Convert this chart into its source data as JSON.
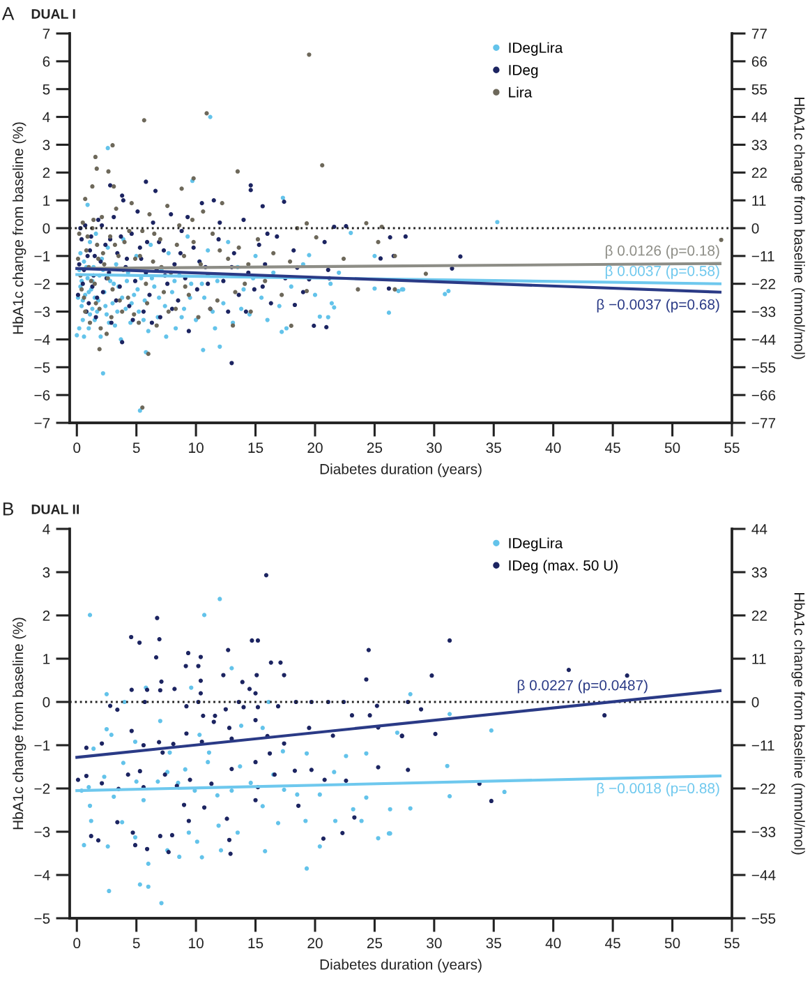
{
  "chart_data": [
    {
      "type": "scatter",
      "title": "DUAL I",
      "xlabel": "Diabetes duration (years)",
      "ylabel": "HbA1c change from baseline (%)",
      "y2label": "HbA1c change from baseline (mmol/mol)",
      "annotations": [
        "A"
      ],
      "xlim": [
        -0.6,
        55
      ],
      "xticks": [
        0,
        5,
        10,
        15,
        20,
        25,
        30,
        35,
        40,
        45,
        50,
        55
      ],
      "ylim": [
        -7,
        7
      ],
      "yticks": [
        -7,
        -6,
        -5,
        -4,
        -3,
        -2,
        -1,
        0,
        1,
        2,
        3,
        4,
        5,
        6,
        7
      ],
      "y2lim": [
        -77,
        77
      ],
      "y2ticks": [
        -77,
        -66,
        -55,
        -44,
        -33,
        -22,
        -11,
        0,
        11,
        22,
        33,
        44,
        55,
        66,
        77
      ],
      "legend": "top right",
      "ref_lines": [
        {
          "axis": "y",
          "value": 0,
          "color": "#222222",
          "line_style": "dotted"
        }
      ],
      "series": [
        {
          "name": "IDegLira",
          "color": "#63c3ea",
          "marker": "circle",
          "x": [
            2.2,
            5.3,
            5.8,
            10.6,
            12.0,
            0,
            17.2,
            17.6,
            11.2,
            2.6,
            9.7,
            17.3,
            0.9,
            35.3,
            27.0,
            27.3,
            30.9,
            31.2,
            25.0,
            25.0,
            26.2,
            27.4,
            23.0,
            21.3,
            21.4,
            21.6,
            21.1,
            20.4,
            19.5,
            0.2,
            0.3,
            0.4,
            0.5,
            0.3,
            0.6,
            0.7,
            0.8,
            0.9,
            1.0,
            1.1,
            1.2,
            1.3,
            1.4,
            1.5,
            1.6,
            1.8,
            1.9,
            2.0,
            2.1,
            2.3,
            2.5,
            2.6,
            2.8,
            3.0,
            3.2,
            3.3,
            3.5,
            3.7,
            3.9,
            4.1,
            4.3,
            4.5,
            4.8,
            5.0,
            5.2,
            5.4,
            5.7,
            6.0,
            6.2,
            6.5,
            6.8,
            7.1,
            7.4,
            7.7,
            8.0,
            8.3,
            8.6,
            9.0,
            9.3,
            9.6,
            10.0,
            10.3,
            10.7,
            11.0,
            11.4,
            11.8,
            12.3,
            12.7,
            13.1,
            13.5,
            14.0,
            14.5,
            15.0,
            15.5,
            16.0,
            16.5,
            17.0,
            18.0,
            19.0,
            20.0,
            22.0,
            0.1,
            0.2,
            0.4,
            0.5,
            0.6,
            0.8,
            1.0,
            1.1,
            1.3,
            1.5,
            1.7,
            2.2,
            2.4,
            2.7,
            3.1,
            3.4,
            3.8,
            4.2,
            4.6,
            5.1,
            5.6,
            6.3,
            6.9,
            7.5,
            8.2,
            8.8,
            9.5,
            10.5,
            11.6,
            13.8,
            14.8
          ],
          "values": [
            -5.22,
            -6.56,
            -4.46,
            -4.38,
            -4.26,
            -3.85,
            -3.73,
            -3.6,
            4.0,
            2.88,
            1.7,
            1.09,
            0.84,
            0.22,
            -2.26,
            -2.2,
            -2.37,
            -2.26,
            -1.0,
            -2.17,
            -3.04,
            -2.2,
            -0.17,
            -2.0,
            -2.7,
            -2.85,
            -3.2,
            -3.18,
            -0.97,
            -1.5,
            -2.1,
            -2.8,
            -3.3,
            -0.9,
            -1.2,
            -2.4,
            -3.0,
            -1.8,
            -3.6,
            -0.5,
            -2.2,
            -2.9,
            -1.4,
            -3.3,
            -0.2,
            -2.6,
            -1.7,
            -3.9,
            -1.1,
            -2.3,
            -3.1,
            -0.7,
            -1.9,
            -2.7,
            -3.5,
            -1.3,
            -2.1,
            -4.0,
            -0.4,
            -2.9,
            -1.6,
            -3.4,
            -2.4,
            -1.0,
            -3.0,
            -1.8,
            -2.6,
            -3.7,
            -0.6,
            -2.1,
            -3.2,
            -1.5,
            -2.8,
            -0.9,
            -2.3,
            -3.6,
            -1.7,
            -2.9,
            -0.3,
            -2.0,
            -3.3,
            -1.2,
            -2.5,
            -0.8,
            -3.0,
            -1.9,
            -2.7,
            -0.5,
            -3.4,
            -1.4,
            -2.2,
            -3.1,
            -1.0,
            -2.5,
            -3.3,
            -1.6,
            -2.8,
            -2.1,
            -1.3,
            -2.4,
            -1.6,
            -2.5,
            -3.6,
            -1.9,
            -2.6,
            -3.9,
            -1.4,
            -2.3,
            -3.1,
            -1.9,
            -2.5,
            -3.0,
            -1.5,
            -2.8,
            -3.4,
            -2.0,
            -3.0,
            -2.5,
            -1.9,
            -2.7,
            -2.2,
            -3.3,
            -1.8,
            -2.5,
            -3.9,
            -1.9,
            -3.2,
            -2.5,
            -2.0,
            -3.6,
            -2.9,
            -1.8
          ]
        },
        {
          "name": "IDeg",
          "color": "#1c2461",
          "marker": "circle",
          "x": [
            2.8,
            5.8,
            14.6,
            14.6,
            6.6,
            3.8,
            15.6,
            17.4,
            13.0,
            3.8,
            19.9,
            21.6,
            22.6,
            27.6,
            25.5,
            26.2,
            20.8,
            21.2,
            21.1,
            20.95,
            18.5,
            18.3,
            19.5,
            26.3,
            26.6,
            32.2,
            31.5,
            0.2,
            0.4,
            0.5,
            0.7,
            0.9,
            1.0,
            1.2,
            1.4,
            1.6,
            1.8,
            2.0,
            2.2,
            2.4,
            2.7,
            2.9,
            3.1,
            3.4,
            3.6,
            3.9,
            4.1,
            4.4,
            4.6,
            4.9,
            5.1,
            5.4,
            5.6,
            5.9,
            6.1,
            6.4,
            6.7,
            7.0,
            7.3,
            7.6,
            7.9,
            8.2,
            8.5,
            8.8,
            9.1,
            9.4,
            9.8,
            10.1,
            10.5,
            10.8,
            11.2,
            11.5,
            11.9,
            12.3,
            12.7,
            13.2,
            13.6,
            14.0,
            14.4,
            14.9,
            15.3,
            15.8,
            16.3,
            16.8,
            17.5,
            18.2,
            19.0,
            0.1,
            0.3,
            0.6,
            0.8,
            1.1,
            1.3,
            1.5,
            1.7,
            2.1,
            2.5,
            2.8,
            3.3,
            3.7,
            4.2,
            4.7,
            5.3,
            5.8,
            6.3,
            6.9,
            7.4,
            8.0,
            8.7,
            9.3,
            10.3,
            11.0,
            12.0,
            13.0,
            14.2,
            15.6,
            16.0
          ],
          "values": [
            1.54,
            1.67,
            1.54,
            1.37,
            1.34,
            1.17,
            0.79,
            0.95,
            -4.85,
            -4.1,
            -3.51,
            0.05,
            0.07,
            -0.3,
            -1.09,
            -2.17,
            -0.5,
            -1.8,
            -1.5,
            -3.56,
            -1.42,
            -2.76,
            -1.84,
            -0.33,
            -1.0,
            -1.02,
            -1.45,
            -1.3,
            -0.4,
            -2.0,
            0.1,
            -1.0,
            -2.7,
            -0.3,
            -1.7,
            -3.2,
            0.3,
            -1.2,
            -2.3,
            -0.6,
            -1.6,
            -3.4,
            0.4,
            -0.9,
            -2.1,
            1.0,
            -1.4,
            -2.8,
            -0.2,
            -1.9,
            0.6,
            -1.1,
            -3.0,
            -0.5,
            -2.4,
            0.2,
            -1.5,
            -3.2,
            -0.8,
            -2.0,
            0.5,
            -1.3,
            -2.6,
            -0.1,
            -1.8,
            -3.7,
            -0.7,
            -2.2,
            0.9,
            -1.4,
            -2.9,
            1.0,
            -0.4,
            -1.9,
            -3.0,
            -0.9,
            -2.4,
            0.3,
            -1.6,
            -2.2,
            -0.6,
            -1.3,
            -2.7,
            -0.3,
            -1.8,
            -0.8,
            -2.3,
            -2.4,
            0.0,
            -1.5,
            -3.0,
            -0.8,
            -2.1,
            -1.0,
            -2.5,
            0.1,
            -1.8,
            -0.4,
            -2.6,
            -0.3,
            -1.1,
            -3.3,
            -0.7,
            -1.6,
            -3.4,
            -0.5,
            -1.7,
            -2.9,
            -0.9,
            0.4,
            -1.2,
            -2.0,
            0.2,
            -1.4,
            -3.0,
            -2.1,
            -0.2
          ]
        },
        {
          "name": "Lira",
          "color": "#6d685a",
          "marker": "circle",
          "x": [
            19.5,
            5.65,
            10.9,
            1.56,
            1.67,
            3.0,
            2.65,
            3.1,
            1.3,
            13.5,
            20.6,
            9.8,
            8.8,
            0.7,
            5.5,
            1.9,
            6.0,
            18.0,
            24.3,
            25.6,
            25.3,
            26.7,
            26.7,
            23.6,
            22.4,
            20.1,
            19.3,
            18.5,
            19.3,
            29.3,
            54.1,
            0.2,
            0.3,
            0.5,
            0.6,
            0.8,
            1.0,
            1.1,
            1.3,
            1.5,
            1.7,
            1.9,
            2.1,
            2.3,
            2.5,
            2.8,
            3.0,
            3.3,
            3.5,
            3.8,
            4.0,
            4.3,
            4.6,
            4.9,
            5.2,
            5.5,
            5.8,
            6.1,
            6.4,
            6.7,
            7.0,
            7.3,
            7.6,
            7.9,
            8.3,
            8.6,
            9.0,
            9.4,
            9.8,
            10.2,
            10.6,
            11.0,
            11.4,
            11.8,
            12.2,
            12.7,
            13.1,
            13.6,
            14.1,
            14.6,
            15.2,
            15.8,
            16.5,
            17.2,
            17.9,
            0.1,
            0.4,
            0.7,
            0.9,
            1.2,
            1.4,
            1.6,
            1.8,
            2.0,
            2.2,
            2.6,
            2.9,
            3.2,
            3.6,
            3.9,
            4.4,
            4.8,
            5.3,
            5.9,
            6.5,
            7.1,
            7.7,
            8.4,
            9.1,
            9.7,
            10.4,
            11.2,
            12.0,
            13.3,
            14.4
          ],
          "values": [
            6.24,
            3.88,
            4.13,
            2.56,
            2.14,
            2.98,
            2.04,
            1.5,
            1.5,
            2.04,
            2.26,
            1.79,
            1.42,
            1.05,
            -6.45,
            -4.35,
            -4.52,
            -3.51,
            0.18,
            0.05,
            -0.5,
            -1.0,
            -2.2,
            -2.2,
            -1.1,
            -0.33,
            0.17,
            0.0,
            -2.26,
            -1.64,
            -0.42,
            -0.2,
            -1.7,
            0.2,
            -2.5,
            -0.8,
            -1.4,
            -3.4,
            0.0,
            -2.0,
            -0.6,
            -2.9,
            0.4,
            -1.3,
            -3.8,
            -0.3,
            -2.2,
            0.7,
            -1.0,
            -3.0,
            -0.5,
            -2.5,
            0.9,
            -1.1,
            -3.4,
            -0.1,
            -2.0,
            0.5,
            -1.2,
            -3.5,
            -0.4,
            -2.3,
            0.8,
            -1.6,
            -2.9,
            0.1,
            -1.0,
            -2.4,
            -0.5,
            -3.2,
            0.6,
            -1.7,
            -0.2,
            -2.6,
            0.9,
            -1.1,
            -3.5,
            -0.7,
            -2.0,
            -3.0,
            -0.4,
            -1.9,
            -0.9,
            -2.4,
            -1.2,
            -1.1,
            -2.2,
            -3.0,
            -0.3,
            -1.9,
            0.3,
            -2.7,
            -1.1,
            -3.6,
            -0.9,
            -1.8,
            -3.2,
            -0.6,
            -2.6,
            -1.5,
            -0.1,
            -3.1,
            -1.0,
            -2.7,
            -0.2,
            -1.4,
            -3.0,
            -0.6,
            -2.1,
            0.3,
            -1.3,
            -2.9,
            -0.8,
            -2.3,
            -1.3
          ]
        },
        {
          "type": "line",
          "name": "β 0.0126 (p=0.18)",
          "color": "#8d8d86",
          "x": [
            0,
            54
          ],
          "values": [
            -1.45,
            -1.27
          ]
        },
        {
          "type": "line",
          "name": "β 0.0037 (p=0.58)",
          "color": "#6ec8ee",
          "x": [
            0,
            54
          ],
          "values": [
            -1.67,
            -2.0
          ]
        },
        {
          "type": "line",
          "name": "β −0.0037 (p=0.68)",
          "color": "#2a3a86",
          "x": [
            0,
            54
          ],
          "values": [
            -1.45,
            -2.3
          ]
        }
      ]
    },
    {
      "type": "scatter",
      "title": "DUAL II",
      "xlabel": "Diabetes duration (years)",
      "ylabel": "HbA1c change from baseline (%)",
      "y2label": "HbA1c change from baseline (mmol/mol)",
      "annotations": [
        "B"
      ],
      "xlim": [
        -0.6,
        55
      ],
      "xticks": [
        0,
        5,
        10,
        15,
        20,
        25,
        30,
        35,
        40,
        45,
        50,
        55
      ],
      "ylim": [
        -5,
        4
      ],
      "yticks": [
        -5,
        -4,
        -3,
        -2,
        -1,
        0,
        1,
        2,
        3,
        4
      ],
      "y2lim": [
        -55,
        44
      ],
      "y2ticks": [
        -55,
        -44,
        -33,
        -22,
        -11,
        0,
        11,
        22,
        33,
        44
      ],
      "legend": "top right",
      "ref_lines": [
        {
          "axis": "y",
          "value": 0,
          "color": "#222222",
          "line_style": "dotted"
        }
      ],
      "series": [
        {
          "name": "IDegLira",
          "color": "#63c3ea",
          "marker": "circle",
          "x": [
            1.1,
            10.7,
            12.0,
            13.0,
            9.6,
            5.8,
            2.5,
            4.0,
            16.1,
            28.0,
            2.5,
            0.4,
            1.1,
            1.0,
            2.3,
            3.1,
            3.9,
            5.0,
            5.6,
            6.8,
            7.6,
            8.5,
            9.1,
            9.9,
            11.0,
            11.8,
            13.0,
            13.7,
            14.6,
            15.6,
            16.5,
            17.4,
            18.5,
            20.4,
            21.6,
            23.2,
            24.3,
            26.3,
            28.0,
            0.6,
            1.2,
            2.6,
            2.7,
            3.8,
            4.9,
            5.3,
            6.0,
            6.0,
            7.1,
            7.6,
            8.6,
            9.4,
            10.1,
            10.5,
            11.9,
            12.1,
            13.5,
            15.8,
            16.9,
            19.3,
            19.2,
            20.4,
            21.7,
            23.9,
            25.3,
            26.2,
            1.4,
            2.9,
            4.9,
            7.0,
            7.8,
            10.3,
            11.1,
            13.8,
            15.6,
            17.3,
            19.3,
            22.6,
            24.3,
            26.9,
            31.3,
            34.8,
            31.1,
            31.3,
            35.9,
            26.3
          ],
          "values": [
            2.01,
            2.01,
            2.38,
            0.78,
            0.33,
            0.33,
            0.18,
            0.0,
            0.0,
            0.18,
            -0.63,
            -2.05,
            -2.4,
            -1.97,
            -1.73,
            -2.19,
            -1.41,
            -1.84,
            -2.27,
            -1.84,
            -1.62,
            -1.87,
            -1.56,
            -2.05,
            -1.39,
            -2.16,
            -2.05,
            -1.49,
            -1.87,
            -2.41,
            -1.68,
            -2.03,
            -2.14,
            -2.14,
            -1.62,
            -2.48,
            -2.21,
            -2.48,
            -2.46,
            -3.31,
            -2.75,
            -3.34,
            -4.37,
            -2.78,
            -3.13,
            -4.22,
            -4.27,
            -3.74,
            -4.65,
            -3.43,
            -3.58,
            -3.02,
            -3.23,
            -3.59,
            -2.86,
            -3.43,
            -3.02,
            -3.45,
            -2.8,
            -3.85,
            -2.75,
            -3.34,
            -2.75,
            -2.75,
            -3.15,
            -3.04,
            -1.08,
            -0.76,
            -0.92,
            -0.44,
            -1.17,
            -0.76,
            -1.17,
            -0.55,
            -0.6,
            -1.14,
            -1.19,
            -1.25,
            -1.19,
            -0.71,
            -0.28,
            -0.66,
            -1.48,
            -2.18,
            -2.08,
            -3.04
          ]
        },
        {
          "name": "IDeg (max. 50 U)",
          "color": "#1c2461",
          "marker": "circle",
          "x": [
            15.9,
            6.74,
            4.56,
            5.26,
            6.93,
            6.66,
            9.35,
            10.4,
            10.2,
            9.15,
            12.7,
            14.7,
            15.2,
            16.3,
            17.1,
            17.4,
            15.1,
            12.3,
            24.5,
            24.3,
            4.6,
            5.9,
            7.1,
            7.0,
            8.2,
            10.4,
            10.4,
            13.9,
            14.5,
            15.0,
            2.8,
            3.4,
            5.7,
            9.2,
            10.2,
            10.6,
            11.6,
            12.5,
            13.6,
            14.0,
            15.2,
            16.9,
            18.4,
            19.7,
            21.1,
            22.4,
            23.1,
            24.6,
            25.2,
            27.8,
            0.8,
            2.1,
            4.6,
            5.6,
            6.9,
            7.2,
            8.1,
            9.2,
            10.5,
            11.5,
            12.8,
            13.0,
            15.0,
            16.0,
            16.2,
            17.4,
            19.5,
            21.5,
            25.3,
            27.3,
            0.1,
            0.8,
            2.1,
            3.5,
            4.3,
            5.3,
            5.6,
            7.4,
            8.4,
            9.5,
            11.3,
            13.0,
            15.0,
            16.6,
            18.3,
            19.7,
            20.8,
            22.6,
            25.3,
            27.8,
            3.4,
            4.7,
            4.9,
            5.9,
            7.0,
            8.0,
            9.0,
            9.4,
            10.7,
            12.6,
            12.8,
            12.9,
            15.0,
            15.2,
            18.6,
            20.7,
            22.3,
            23.3,
            1.2,
            1.8,
            7.7,
            31.3,
            41.3,
            29.8,
            46.2,
            28.9,
            27.3,
            30.1,
            33.8,
            34.8,
            44.3
          ],
          "values": [
            2.93,
            1.94,
            1.5,
            1.37,
            1.45,
            1.03,
            1.13,
            1.04,
            0.83,
            0.83,
            1.2,
            1.42,
            1.42,
            0.91,
            0.91,
            0.62,
            0.62,
            0.62,
            1.2,
            0.52,
            0.28,
            0.28,
            0.47,
            0.27,
            0.3,
            0.49,
            0.2,
            0.46,
            0.3,
            0.2,
            -0.09,
            -0.18,
            0.0,
            -0.1,
            0.0,
            -0.32,
            -0.32,
            -0.17,
            0.0,
            -0.12,
            -0.12,
            -0.1,
            0.0,
            0.0,
            0.0,
            0.0,
            -0.31,
            -0.31,
            -0.09,
            0.0,
            -1.06,
            -0.96,
            -0.67,
            -1.0,
            -0.93,
            -1.17,
            -0.97,
            -0.73,
            -0.92,
            -0.46,
            -0.6,
            -0.85,
            -0.42,
            -0.79,
            -1.19,
            -0.96,
            -0.6,
            -0.78,
            -0.59,
            -0.78,
            -1.8,
            -1.71,
            -1.88,
            -2.01,
            -1.68,
            -1.6,
            -1.97,
            -1.68,
            -1.94,
            -1.8,
            -1.89,
            -1.55,
            -1.39,
            -1.68,
            -1.59,
            -1.57,
            -1.8,
            -1.82,
            -1.51,
            -1.57,
            -2.78,
            -3.02,
            -3.31,
            -3.4,
            -3.1,
            -3.08,
            -2.38,
            -2.75,
            -2.44,
            -2.7,
            -3.19,
            -3.51,
            -2.27,
            -1.97,
            -2.4,
            -3.16,
            -3.03,
            -2.67,
            -3.1,
            -3.2,
            -3.47,
            1.42,
            0.74,
            0.61,
            0.61,
            -0.17,
            -0.79,
            -0.74,
            -1.89,
            -2.29,
            -0.31
          ]
        },
        {
          "type": "line",
          "name": "β 0.0227 (p=0.0487)",
          "color": "#2a3a86",
          "x": [
            0,
            54
          ],
          "values": [
            -1.28,
            0.26
          ]
        },
        {
          "type": "line",
          "name": "β −0.0018 (p=0.88)",
          "color": "#6ec8ee",
          "x": [
            0,
            54
          ],
          "values": [
            -2.05,
            -1.71
          ]
        }
      ]
    }
  ]
}
